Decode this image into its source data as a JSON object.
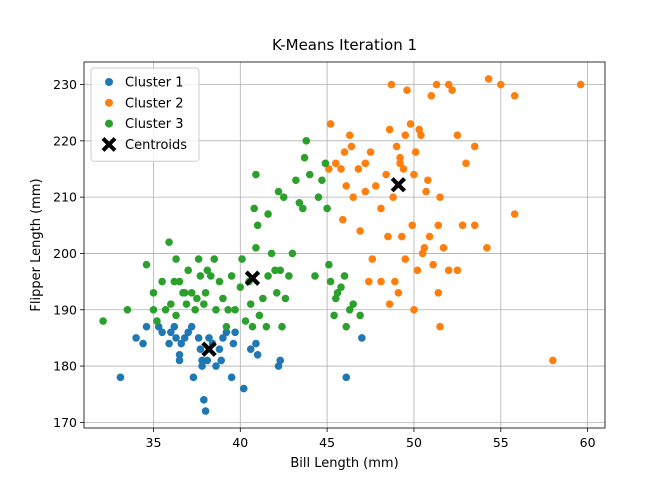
{
  "chart_data": {
    "type": "scatter",
    "title": "K-Means Iteration 1",
    "xlabel": "Bill Length (mm)",
    "ylabel": "Flipper Length (mm)",
    "xlim": [
      31.0,
      61.0
    ],
    "ylim": [
      169.0,
      234.0
    ],
    "xticks": [
      35,
      40,
      45,
      50,
      55,
      60
    ],
    "yticks": [
      170,
      180,
      190,
      200,
      210,
      220,
      230
    ],
    "grid": true,
    "legend_position": "top-left",
    "series": [
      {
        "name": "Cluster 1",
        "color": "#1f77b4",
        "marker": "circle",
        "points": [
          [
            33.1,
            178
          ],
          [
            34.0,
            185
          ],
          [
            34.4,
            184
          ],
          [
            34.6,
            187
          ],
          [
            35.3,
            187
          ],
          [
            35.5,
            186
          ],
          [
            35.9,
            184
          ],
          [
            36.0,
            186
          ],
          [
            36.2,
            187
          ],
          [
            36.3,
            185
          ],
          [
            36.5,
            182
          ],
          [
            36.5,
            181
          ],
          [
            36.6,
            184
          ],
          [
            36.8,
            185
          ],
          [
            37.0,
            186
          ],
          [
            37.2,
            187
          ],
          [
            37.3,
            178
          ],
          [
            37.6,
            185
          ],
          [
            37.7,
            183
          ],
          [
            37.8,
            181
          ],
          [
            37.8,
            180
          ],
          [
            37.9,
            174
          ],
          [
            38.0,
            172
          ],
          [
            38.1,
            181
          ],
          [
            38.2,
            185
          ],
          [
            38.4,
            184
          ],
          [
            38.6,
            180
          ],
          [
            38.8,
            183
          ],
          [
            38.9,
            181
          ],
          [
            39.0,
            185
          ],
          [
            39.2,
            186
          ],
          [
            39.5,
            178
          ],
          [
            39.6,
            184
          ],
          [
            39.7,
            186
          ],
          [
            40.2,
            176
          ],
          [
            40.6,
            183
          ],
          [
            40.9,
            184
          ],
          [
            41.0,
            182
          ],
          [
            42.2,
            180
          ],
          [
            42.3,
            181
          ],
          [
            46.1,
            178
          ],
          [
            47.0,
            185
          ]
        ]
      },
      {
        "name": "Cluster 2",
        "color": "#ff7f0e",
        "marker": "circle",
        "points": [
          [
            45.1,
            215
          ],
          [
            45.2,
            223
          ],
          [
            45.5,
            216
          ],
          [
            45.8,
            215
          ],
          [
            46.0,
            218
          ],
          [
            46.1,
            212
          ],
          [
            46.3,
            221
          ],
          [
            46.5,
            210
          ],
          [
            46.8,
            215
          ],
          [
            47.2,
            211
          ],
          [
            47.5,
            218
          ],
          [
            47.8,
            212
          ],
          [
            48.1,
            208
          ],
          [
            48.4,
            214
          ],
          [
            48.6,
            222
          ],
          [
            48.7,
            230
          ],
          [
            48.8,
            210
          ],
          [
            49.0,
            219
          ],
          [
            49.2,
            217
          ],
          [
            49.4,
            215
          ],
          [
            49.6,
            229
          ],
          [
            49.8,
            223
          ],
          [
            50.0,
            214
          ],
          [
            50.1,
            218
          ],
          [
            50.4,
            221
          ],
          [
            50.5,
            200
          ],
          [
            50.8,
            213
          ],
          [
            51.0,
            228
          ],
          [
            51.3,
            230
          ],
          [
            51.5,
            210
          ],
          [
            52.0,
            230
          ],
          [
            52.2,
            229
          ],
          [
            52.5,
            221
          ],
          [
            53.0,
            216
          ],
          [
            53.5,
            219
          ],
          [
            54.3,
            231
          ],
          [
            55.0,
            230
          ],
          [
            55.8,
            228
          ],
          [
            59.6,
            230
          ],
          [
            48.5,
            203
          ],
          [
            48.9,
            195
          ],
          [
            49.3,
            203
          ],
          [
            49.5,
            199
          ],
          [
            49.9,
            205
          ],
          [
            50.2,
            197
          ],
          [
            50.6,
            201
          ],
          [
            50.9,
            203
          ],
          [
            51.1,
            198
          ],
          [
            51.4,
            193
          ],
          [
            51.7,
            201
          ],
          [
            52.0,
            197
          ],
          [
            52.5,
            197
          ],
          [
            52.8,
            205
          ],
          [
            53.5,
            205
          ],
          [
            54.2,
            201
          ],
          [
            55.8,
            207
          ],
          [
            47.6,
            199
          ],
          [
            48.1,
            195
          ],
          [
            48.6,
            191
          ],
          [
            49.1,
            193
          ],
          [
            50.0,
            190
          ],
          [
            51.5,
            187
          ],
          [
            58.0,
            181
          ],
          [
            46.4,
            219
          ],
          [
            47.2,
            216
          ],
          [
            45.9,
            206
          ],
          [
            46.9,
            204
          ],
          [
            47.4,
            195
          ],
          [
            50.3,
            222
          ],
          [
            49.2,
            216
          ],
          [
            49.5,
            221
          ],
          [
            50.7,
            211
          ],
          [
            51.4,
            205
          ]
        ]
      },
      {
        "name": "Cluster 3",
        "color": "#2ca02c",
        "marker": "circle",
        "points": [
          [
            32.1,
            188
          ],
          [
            33.5,
            190
          ],
          [
            34.6,
            198
          ],
          [
            35.0,
            190
          ],
          [
            35.0,
            193
          ],
          [
            35.2,
            188
          ],
          [
            35.5,
            195
          ],
          [
            35.7,
            190
          ],
          [
            35.9,
            202
          ],
          [
            36.0,
            191
          ],
          [
            36.2,
            195
          ],
          [
            36.3,
            189
          ],
          [
            36.5,
            195
          ],
          [
            36.7,
            193
          ],
          [
            36.9,
            191
          ],
          [
            37.0,
            197
          ],
          [
            37.2,
            193
          ],
          [
            37.4,
            190
          ],
          [
            37.6,
            199
          ],
          [
            37.7,
            196
          ],
          [
            37.9,
            191
          ],
          [
            38.0,
            193
          ],
          [
            38.1,
            197
          ],
          [
            38.3,
            196
          ],
          [
            38.5,
            199
          ],
          [
            38.6,
            190
          ],
          [
            38.8,
            195
          ],
          [
            39.0,
            192
          ],
          [
            39.2,
            187
          ],
          [
            39.5,
            196
          ],
          [
            39.7,
            190
          ],
          [
            40.0,
            194
          ],
          [
            40.1,
            199
          ],
          [
            40.3,
            188
          ],
          [
            40.5,
            195
          ],
          [
            40.6,
            191
          ],
          [
            40.8,
            208
          ],
          [
            40.9,
            201
          ],
          [
            41.0,
            205
          ],
          [
            41.1,
            189
          ],
          [
            41.3,
            192
          ],
          [
            41.5,
            187
          ],
          [
            41.6,
            196
          ],
          [
            41.8,
            200
          ],
          [
            42.0,
            197
          ],
          [
            42.1,
            193
          ],
          [
            42.3,
            197
          ],
          [
            42.4,
            187
          ],
          [
            42.6,
            192
          ],
          [
            42.8,
            196
          ],
          [
            43.0,
            200
          ],
          [
            43.2,
            213
          ],
          [
            43.4,
            209
          ],
          [
            43.6,
            208
          ],
          [
            43.8,
            220
          ],
          [
            44.0,
            214
          ],
          [
            44.3,
            196
          ],
          [
            44.5,
            210
          ],
          [
            44.7,
            213
          ],
          [
            45.0,
            208
          ],
          [
            45.1,
            198
          ],
          [
            45.2,
            195
          ],
          [
            45.4,
            189
          ],
          [
            45.5,
            192
          ],
          [
            45.6,
            193
          ],
          [
            45.8,
            194
          ],
          [
            46.0,
            196
          ],
          [
            46.1,
            187
          ],
          [
            46.3,
            190
          ],
          [
            46.5,
            191
          ],
          [
            46.9,
            189
          ],
          [
            40.9,
            214
          ],
          [
            41.6,
            207
          ],
          [
            42.2,
            211
          ],
          [
            44.9,
            216
          ],
          [
            36.3,
            199
          ],
          [
            36.8,
            193
          ],
          [
            37.5,
            192
          ],
          [
            39.3,
            190
          ],
          [
            40.7,
            187
          ],
          [
            42.5,
            210
          ],
          [
            43.7,
            217
          ]
        ]
      },
      {
        "name": "Centroids",
        "color": "#000000",
        "marker": "x",
        "points": [
          [
            38.2,
            183
          ],
          [
            40.7,
            195.6
          ],
          [
            49.1,
            212.2
          ]
        ]
      }
    ]
  }
}
